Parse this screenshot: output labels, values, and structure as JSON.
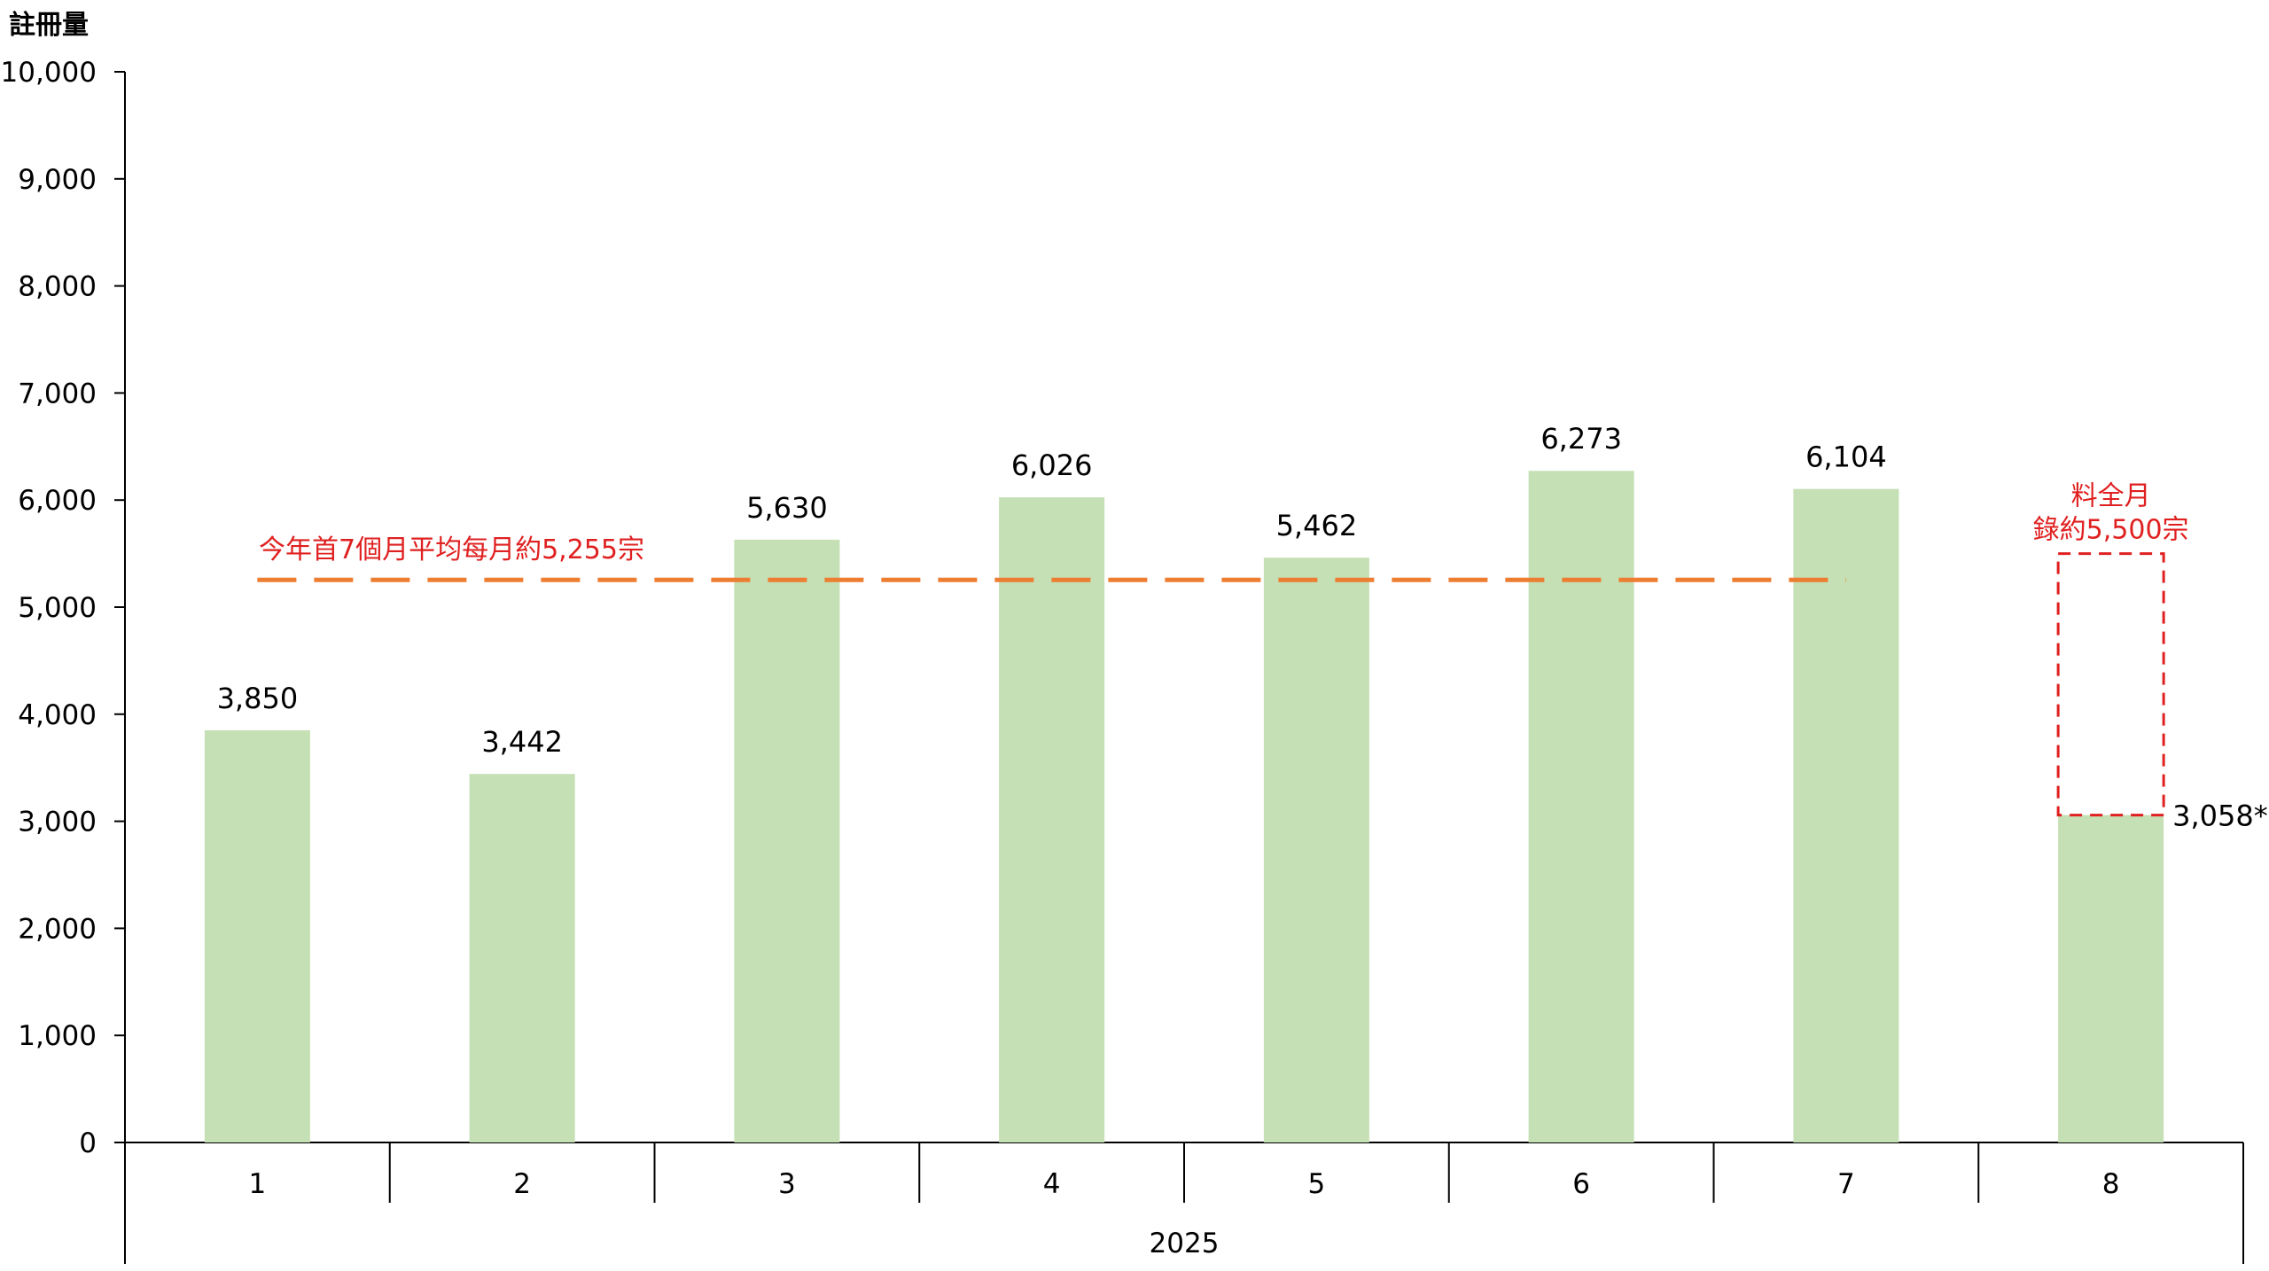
{
  "chart_data": {
    "type": "bar",
    "ylabel": "註冊量",
    "ylim": [
      0,
      10000
    ],
    "yticks": [
      0,
      1000,
      2000,
      3000,
      4000,
      5000,
      6000,
      7000,
      8000,
      9000,
      10000
    ],
    "ytick_labels": [
      "0",
      "1,000",
      "2,000",
      "3,000",
      "4,000",
      "5,000",
      "6,000",
      "7,000",
      "8,000",
      "9,000",
      "10,000"
    ],
    "categories": [
      "1",
      "2",
      "3",
      "4",
      "5",
      "6",
      "7",
      "8"
    ],
    "group_label": "2025",
    "values": [
      3850,
      3442,
      5630,
      6026,
      5462,
      6273,
      6104,
      3058
    ],
    "value_labels": [
      "3,850",
      "3,442",
      "5,630",
      "6,026",
      "5,462",
      "6,273",
      "6,104",
      "3,058*"
    ],
    "bar_color": "#c5e0b4",
    "average_line": {
      "value": 5255,
      "from_category": "1",
      "to_category": "7",
      "label": "今年首7個月平均每月約5,255宗",
      "color": "#ed7d31",
      "label_color": "#e02020"
    },
    "projection": {
      "category": "8",
      "from_value": 3058,
      "to_value": 5500,
      "label_lines": [
        "料全月",
        "錄約5,500宗"
      ],
      "color": "#e02020"
    },
    "grid": false,
    "legend": "none"
  }
}
